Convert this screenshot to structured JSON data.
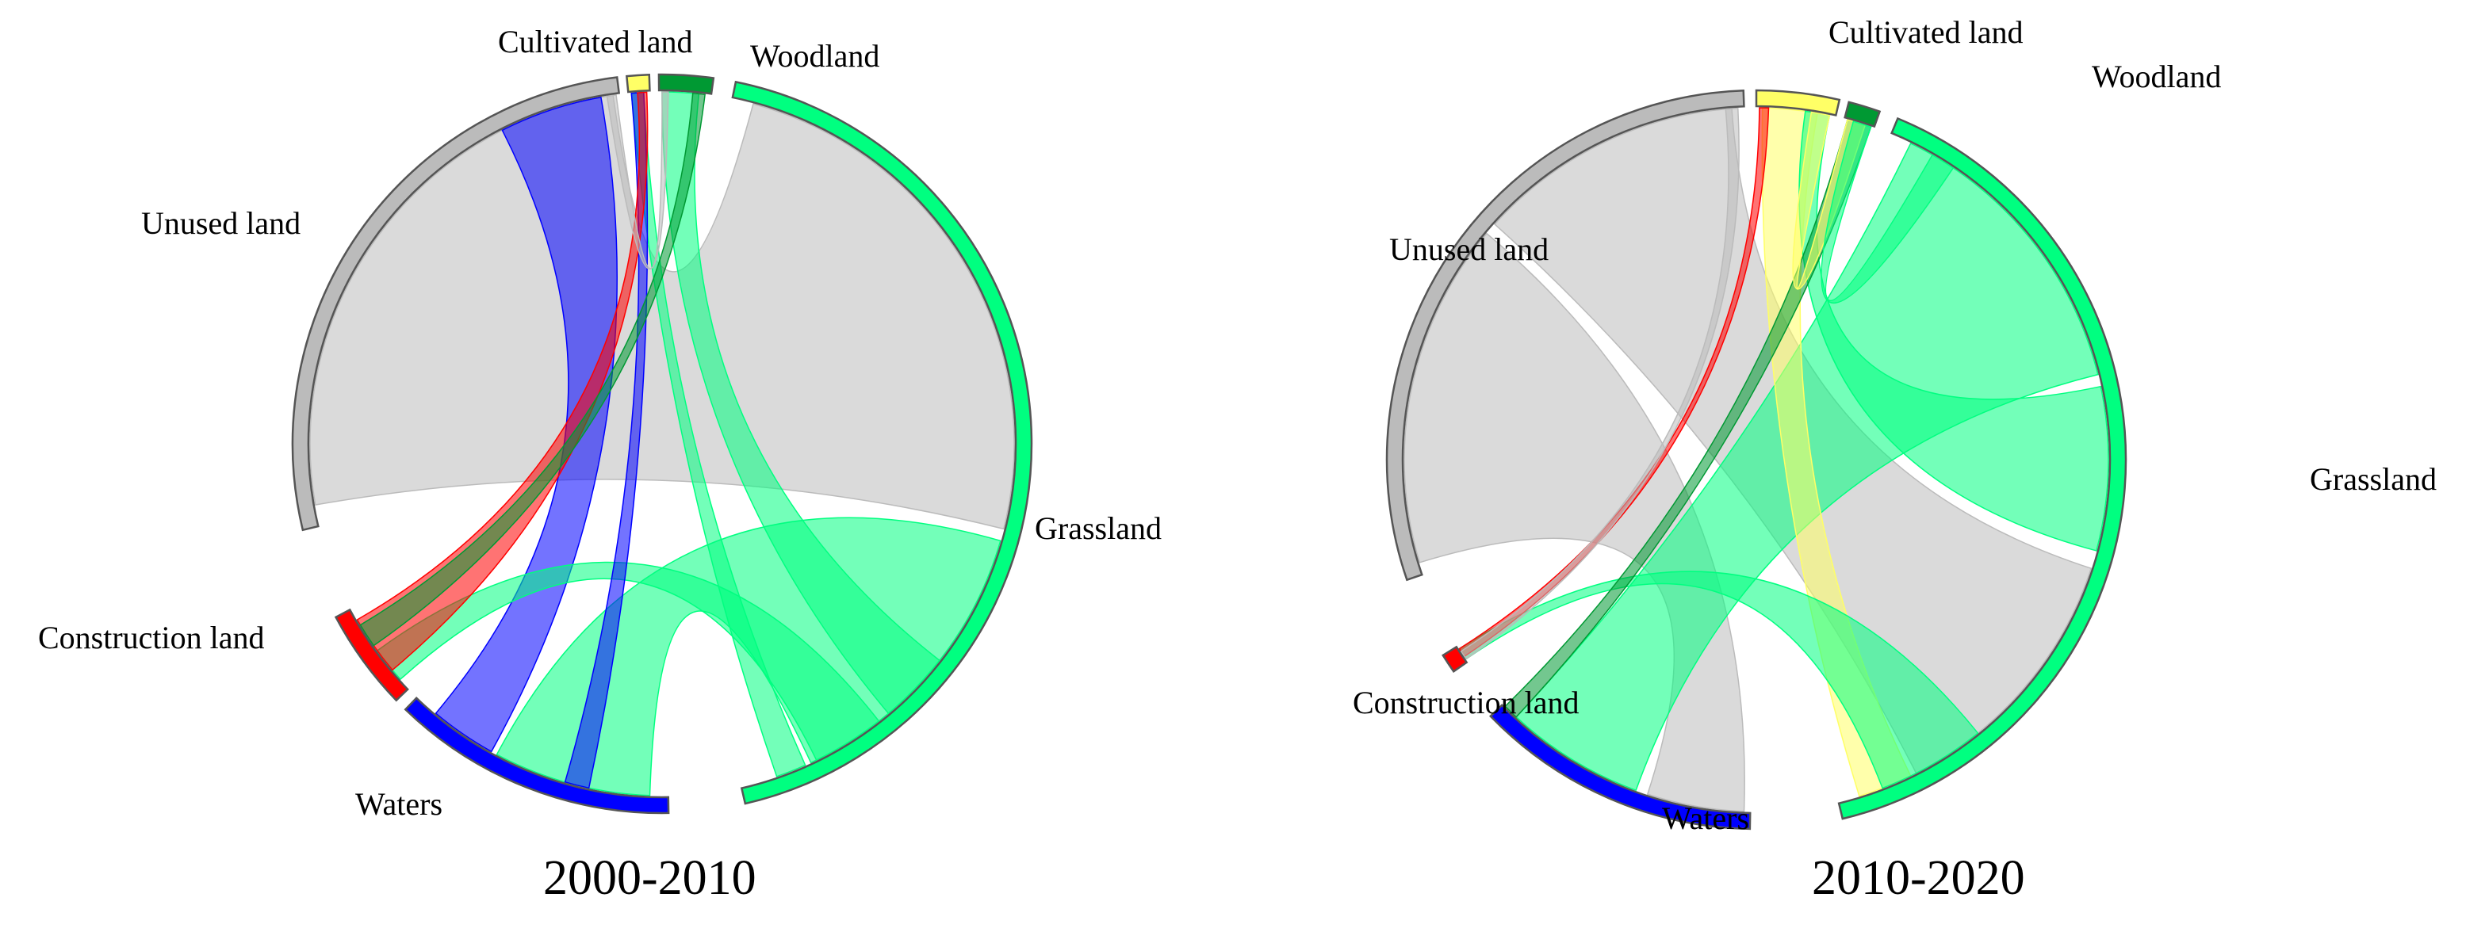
{
  "colors": {
    "Cultivated land": "#ffff66",
    "Woodland": "#009933",
    "Grassland": "#00ff80",
    "Waters": "#0000ff",
    "Construction land": "#ff0000",
    "Unused land": "#bbbbbb"
  },
  "diagrams": [
    {
      "title": "2000-2010",
      "labels": {
        "Cultivated land": "Cultivated land",
        "Woodland": "Woodland",
        "Grassland": "Grassland",
        "Waters": "Waters",
        "Construction land": "Construction land",
        "Unused land": "Unused land"
      }
    },
    {
      "title": "2010-2020",
      "labels": {
        "Cultivated land": "Cultivated land",
        "Woodland": "Woodland",
        "Grassland": "Grassland",
        "Waters": "Waters",
        "Construction land": "Construction land",
        "Unused land": "Unused land"
      }
    }
  ]
}
